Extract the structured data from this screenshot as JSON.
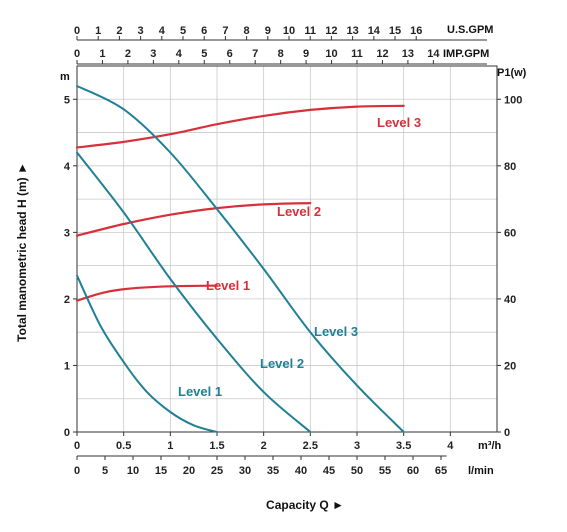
{
  "chart_data": {
    "type": "line",
    "xlabel": "Capacity Q ►",
    "ylabel": "Total manometric head H (m) ►",
    "y_unit": "m",
    "y2_unit": "P1(w)",
    "grid": true,
    "x_m3h": {
      "unit": "m³/h",
      "range": [
        0,
        4.5
      ],
      "ticks": [
        "0",
        "0.5",
        "1",
        "1.5",
        "2",
        "2.5",
        "3",
        "3.5",
        "4"
      ]
    },
    "x_lmin": {
      "unit": "l/min",
      "range": [
        0,
        75
      ],
      "ticks": [
        "0",
        "5",
        "10",
        "15",
        "20",
        "25",
        "30",
        "35",
        "40",
        "45",
        "50",
        "55",
        "60",
        "65"
      ]
    },
    "x_usgpm": {
      "unit": "U.S.GPM",
      "range": [
        0,
        19.81
      ],
      "ticks": [
        "0",
        "1",
        "2",
        "3",
        "4",
        "5",
        "6",
        "7",
        "8",
        "9",
        "10",
        "11",
        "12",
        "13",
        "14",
        "15",
        "16"
      ]
    },
    "x_impgpm": {
      "unit": "IMP.GPM",
      "range": [
        0,
        16.5
      ],
      "ticks": [
        "0",
        "1",
        "2",
        "3",
        "4",
        "5",
        "6",
        "7",
        "8",
        "9",
        "10",
        "11",
        "12",
        "13",
        "14"
      ]
    },
    "y_left": {
      "range": [
        0,
        5.5
      ],
      "ticks": [
        "0",
        "1",
        "2",
        "3",
        "4",
        "5"
      ]
    },
    "y_right": {
      "range": [
        0,
        110
      ],
      "ticks": [
        "0",
        "20",
        "40",
        "60",
        "80",
        "100"
      ]
    },
    "head_series": [
      {
        "name": "Level 1",
        "color": "#1f8096",
        "x": [
          0,
          0.25,
          0.5,
          0.75,
          1.0,
          1.25,
          1.5
        ],
        "y": [
          2.35,
          1.6,
          1.05,
          0.6,
          0.3,
          0.1,
          0
        ]
      },
      {
        "name": "Level 2",
        "color": "#1f8096",
        "x": [
          0,
          0.5,
          1.0,
          1.5,
          2.0,
          2.5
        ],
        "y": [
          4.2,
          3.3,
          2.3,
          1.4,
          0.6,
          0
        ]
      },
      {
        "name": "Level 3",
        "color": "#1f8096",
        "x": [
          0,
          0.5,
          1.0,
          1.5,
          2.0,
          2.5,
          3.0,
          3.5
        ],
        "y": [
          5.2,
          4.85,
          4.2,
          3.35,
          2.45,
          1.5,
          0.7,
          0
        ]
      }
    ],
    "power_series": [
      {
        "name": "Level 1",
        "color": "#d8303a",
        "x": [
          0,
          0.3,
          0.6,
          1.0,
          1.5
        ],
        "y": [
          39.5,
          42,
          43.2,
          43.8,
          44
        ]
      },
      {
        "name": "Level 2",
        "color": "#d8303a",
        "x": [
          0,
          0.5,
          1.0,
          1.5,
          2.0,
          2.5
        ],
        "y": [
          59,
          62.5,
          65.3,
          67.3,
          68.4,
          68.8
        ]
      },
      {
        "name": "Level 3",
        "color": "#d8303a",
        "x": [
          0,
          0.5,
          1.0,
          1.5,
          2.0,
          2.5,
          3.0,
          3.5
        ],
        "y": [
          85.5,
          87.2,
          89.5,
          92.5,
          95,
          96.8,
          97.8,
          98
        ]
      }
    ],
    "head_label_names": [
      "Level 1",
      "Level 2",
      "Level 3"
    ],
    "power_label_names": [
      "Level 1",
      "Level 2",
      "Level 3"
    ]
  }
}
